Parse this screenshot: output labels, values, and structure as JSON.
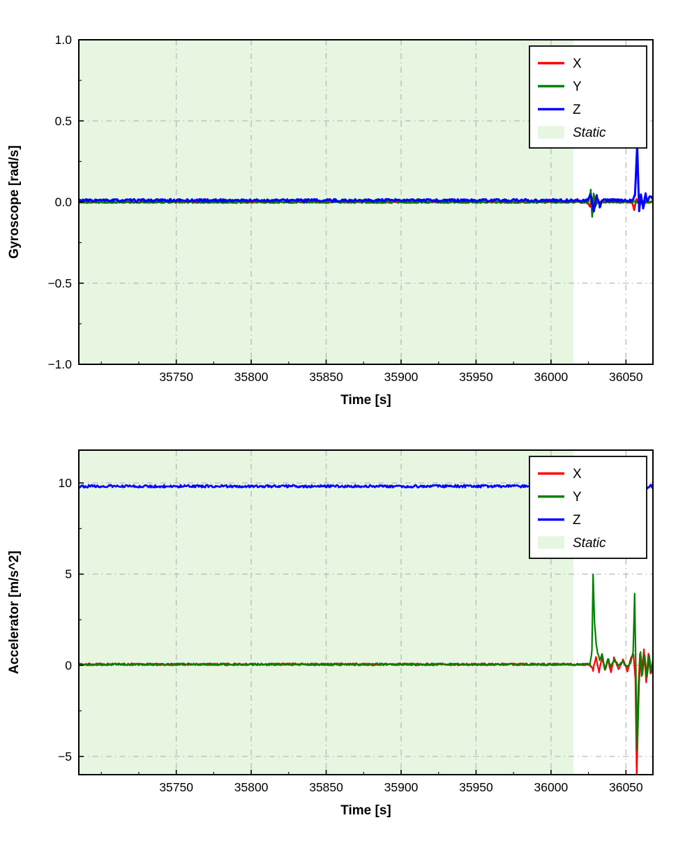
{
  "page": {
    "background": "#ffffff"
  },
  "chart_data": [
    {
      "type": "line",
      "title": "",
      "xlabel": "Time [s]",
      "ylabel": "Gyroscope [rad/s]",
      "xlim": [
        35685,
        36068
      ],
      "ylim": [
        -1.0,
        1.0
      ],
      "xticks": [
        35750,
        35800,
        35850,
        35900,
        35950,
        36000,
        36050
      ],
      "yticks": [
        -1.0,
        -0.5,
        0.0,
        0.5,
        1.0
      ],
      "ytick_labels": [
        "−1.0",
        "−0.5",
        "0.0",
        "0.5",
        "1.0"
      ],
      "grid": {
        "on": true,
        "style": "dash-dot",
        "color": "#b8b8b8"
      },
      "static_region": {
        "label": "Static",
        "start": 35685,
        "end": 36015,
        "color": "#e6f6e1"
      },
      "legend": {
        "position": "upper right",
        "entries": [
          {
            "label": "X",
            "type": "line",
            "color": "#ff0000",
            "italic": false
          },
          {
            "label": "Y",
            "type": "line",
            "color": "#008000",
            "italic": false
          },
          {
            "label": "Z",
            "type": "line",
            "color": "#0000ff",
            "italic": false
          },
          {
            "label": "Static",
            "type": "patch",
            "color": "#e6f6e1",
            "italic": true
          }
        ]
      },
      "series": [
        {
          "name": "X",
          "color": "#ff0000",
          "noise": 0.006,
          "anchors": [
            [
              35685,
              0
            ],
            [
              36024,
              0
            ],
            [
              36026,
              -0.03
            ],
            [
              36027,
              0.03
            ],
            [
              36028,
              -0.02
            ],
            [
              36030,
              0
            ],
            [
              36054,
              0
            ],
            [
              36055.5,
              -0.05
            ],
            [
              36057,
              0.02
            ],
            [
              36058,
              0
            ],
            [
              36068,
              0
            ]
          ]
        },
        {
          "name": "Y",
          "color": "#008000",
          "noise": 0.006,
          "anchors": [
            [
              35685,
              0
            ],
            [
              36025,
              0
            ],
            [
              36026.5,
              0.07
            ],
            [
              36027.5,
              -0.09
            ],
            [
              36028.5,
              0.05
            ],
            [
              36029.5,
              -0.03
            ],
            [
              36031,
              0
            ],
            [
              36068,
              0
            ]
          ]
        },
        {
          "name": "Z",
          "color": "#0000ff",
          "noise": 0.008,
          "anchors": [
            [
              35685,
              0.01
            ],
            [
              36024,
              0.01
            ],
            [
              36026.5,
              0.05
            ],
            [
              36028.5,
              -0.06
            ],
            [
              36030.5,
              0.04
            ],
            [
              36032.5,
              -0.03
            ],
            [
              36034,
              0.01
            ],
            [
              36054,
              0.01
            ],
            [
              36056,
              0.04
            ],
            [
              36057.5,
              0.35
            ],
            [
              36058.8,
              -0.06
            ],
            [
              36060,
              0.05
            ],
            [
              36061.5,
              -0.04
            ],
            [
              36063,
              0.05
            ],
            [
              36064.5,
              0
            ],
            [
              36066,
              0.04
            ],
            [
              36068,
              0.02
            ]
          ]
        }
      ]
    },
    {
      "type": "line",
      "title": "",
      "xlabel": "Time [s]",
      "ylabel": "Accelerator [m/s^2]",
      "xlim": [
        35685,
        36068
      ],
      "ylim": [
        -6.0,
        11.8
      ],
      "xticks": [
        35750,
        35800,
        35850,
        35900,
        35950,
        36000,
        36050
      ],
      "yticks": [
        -5,
        0,
        5,
        10
      ],
      "ytick_labels": [
        "−5",
        "0",
        "5",
        "10"
      ],
      "grid": {
        "on": true,
        "style": "dash-dot",
        "color": "#b8b8b8"
      },
      "static_region": {
        "label": "Static",
        "start": 35685,
        "end": 36015,
        "color": "#e6f6e1"
      },
      "legend": {
        "position": "upper right",
        "entries": [
          {
            "label": "X",
            "type": "line",
            "color": "#ff0000",
            "italic": false
          },
          {
            "label": "Y",
            "type": "line",
            "color": "#008000",
            "italic": false
          },
          {
            "label": "Z",
            "type": "line",
            "color": "#0000ff",
            "italic": false
          },
          {
            "label": "Static",
            "type": "patch",
            "color": "#e6f6e1",
            "italic": true
          }
        ]
      },
      "series": [
        {
          "name": "X",
          "color": "#ff0000",
          "noise": 0.06,
          "anchors": [
            [
              35685,
              0.05
            ],
            [
              36026,
              0.05
            ],
            [
              36028,
              -0.3
            ],
            [
              36030,
              0.5
            ],
            [
              36032,
              -0.4
            ],
            [
              36034,
              0.4
            ],
            [
              36036,
              -0.3
            ],
            [
              36038,
              0.3
            ],
            [
              36040,
              -0.4
            ],
            [
              36042,
              0.4
            ],
            [
              36045,
              -0.2
            ],
            [
              36048,
              0.3
            ],
            [
              36051,
              -0.3
            ],
            [
              36053,
              0.3
            ],
            [
              36055,
              0.6
            ],
            [
              36056.3,
              -0.8
            ],
            [
              36057.2,
              -6.3
            ],
            [
              36058.3,
              -1.2
            ],
            [
              36059.3,
              0.6
            ],
            [
              36060.5,
              -0.6
            ],
            [
              36062,
              0.9
            ],
            [
              36063.5,
              -0.9
            ],
            [
              36065,
              0.6
            ],
            [
              36066.5,
              -0.5
            ],
            [
              36068,
              0.3
            ]
          ]
        },
        {
          "name": "Y",
          "color": "#008000",
          "noise": 0.06,
          "anchors": [
            [
              35685,
              0.05
            ],
            [
              36026,
              0.05
            ],
            [
              36027.3,
              0.8
            ],
            [
              36028.1,
              5.0
            ],
            [
              36029,
              2.4
            ],
            [
              36030,
              1.3
            ],
            [
              36031,
              0.7
            ],
            [
              36032.5,
              0.3
            ],
            [
              36034,
              0.6
            ],
            [
              36036,
              -0.2
            ],
            [
              36038,
              0.4
            ],
            [
              36040,
              -0.1
            ],
            [
              36042,
              0.3
            ],
            [
              36045,
              0
            ],
            [
              36048,
              0.2
            ],
            [
              36051,
              -0.1
            ],
            [
              36053,
              0.1
            ],
            [
              36054.8,
              0.7
            ],
            [
              36055.8,
              3.9
            ],
            [
              36056.8,
              -1.2
            ],
            [
              36057.6,
              -4.6
            ],
            [
              36058.8,
              -1.0
            ],
            [
              36059.8,
              0.7
            ],
            [
              36061,
              -0.5
            ],
            [
              36062.5,
              0.6
            ],
            [
              36064,
              -0.7
            ],
            [
              36065.5,
              0.5
            ],
            [
              36067,
              -0.4
            ],
            [
              36068,
              0.2
            ]
          ]
        },
        {
          "name": "Z",
          "color": "#0000ff",
          "noise": 0.07,
          "anchors": [
            [
              35685,
              9.82
            ],
            [
              36050,
              9.82
            ],
            [
              36055,
              9.75
            ],
            [
              36057,
              9.5
            ],
            [
              36058.5,
              9.85
            ],
            [
              36060,
              9.7
            ],
            [
              36062,
              9.9
            ],
            [
              36064,
              9.75
            ],
            [
              36066,
              9.85
            ],
            [
              36068,
              9.8
            ]
          ]
        }
      ]
    }
  ]
}
